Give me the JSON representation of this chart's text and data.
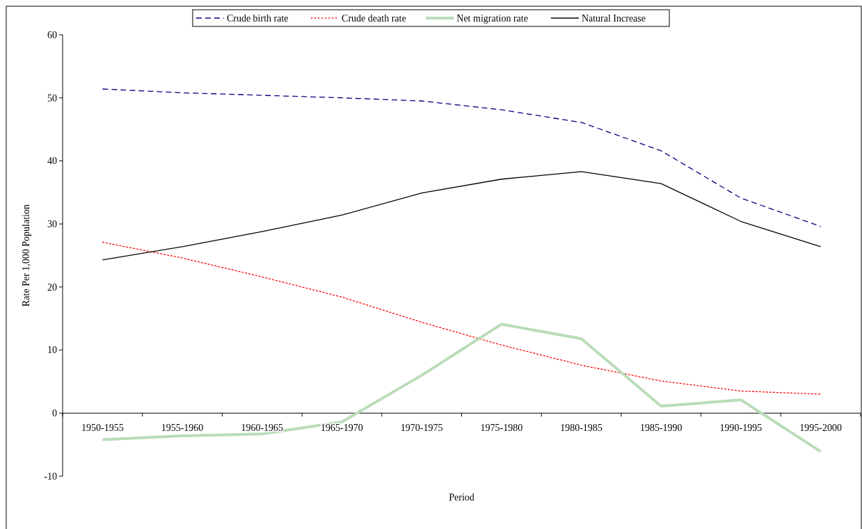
{
  "chart_data": {
    "type": "line",
    "xlabel": "Period",
    "ylabel": "Rate Per 1,000 Population",
    "categories": [
      "1950-1955",
      "1955-1960",
      "1960-1965",
      "1965-1970",
      "1970-1975",
      "1975-1980",
      "1980-1985",
      "1985-1990",
      "1990-1995",
      "1995-2000"
    ],
    "series": [
      {
        "name": "Crude birth rate",
        "color": "#000080",
        "line_style": "dashed",
        "values": [
          51.4,
          50.8,
          50.4,
          50.0,
          49.5,
          48.1,
          46.1,
          41.6,
          34.1,
          29.6
        ]
      },
      {
        "name": "Crude death rate",
        "color": "#ff0000",
        "line_style": "dotted",
        "values": [
          27.1,
          24.6,
          21.6,
          18.4,
          14.4,
          10.8,
          7.6,
          5.1,
          3.5,
          3.0
        ]
      },
      {
        "name": "Net migration rate",
        "color": "#b9dcb9",
        "line_style": "solid",
        "values": [
          -4.2,
          -3.6,
          -3.3,
          -1.4,
          6.0,
          14.1,
          11.8,
          1.1,
          2.1,
          -6.1
        ]
      },
      {
        "name": "Natural Increase",
        "color": "#000000",
        "line_style": "solid",
        "values": [
          24.3,
          26.4,
          28.8,
          31.4,
          34.9,
          37.1,
          38.3,
          36.4,
          30.4,
          26.4
        ]
      }
    ],
    "ylim": [
      -10,
      60
    ],
    "yticks": [
      -10,
      0,
      10,
      20,
      30,
      40,
      50,
      60
    ],
    "grid": false,
    "legend": "top",
    "marker": "none"
  }
}
